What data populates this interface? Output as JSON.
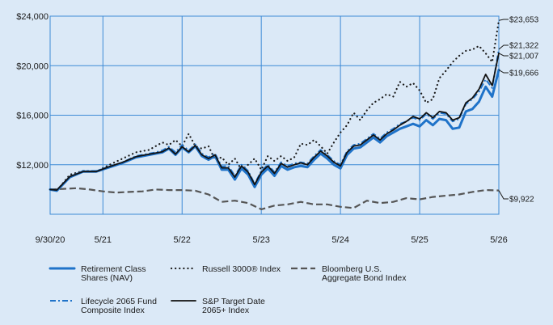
{
  "chart_data": {
    "type": "line",
    "title": "",
    "xlabel": "",
    "ylabel": "",
    "grid": true,
    "legend_placement": "bottom",
    "x_ticks": [
      "9/30/20",
      "5/21",
      "5/22",
      "5/23",
      "5/24",
      "5/25",
      "5/26"
    ],
    "y_ticks": [
      "$12,000",
      "$16,000",
      "$20,000",
      "$24,000"
    ],
    "ylim": [
      8000,
      24000
    ],
    "x_range_months": [
      0,
      68
    ],
    "series": [
      {
        "name": "Retirement Class Shares (NAV)",
        "color": "#1f73c9",
        "style": "solid-thick",
        "end_label": "$19,666",
        "x": [
          0,
          1,
          3,
          5,
          7,
          9,
          11,
          13,
          15,
          16,
          17,
          18,
          19,
          20,
          21,
          22,
          23,
          24,
          25,
          26,
          27,
          28,
          29,
          30,
          31,
          32,
          33,
          34,
          35,
          36,
          37,
          38,
          39,
          40,
          41,
          42,
          43,
          44,
          45,
          46,
          47,
          48,
          49,
          50,
          51,
          52,
          53,
          54,
          55,
          56,
          57,
          58,
          59,
          60,
          61,
          62,
          63,
          64,
          65,
          66,
          67,
          68
        ],
        "values": [
          10000,
          9900,
          11000,
          11450,
          11450,
          11800,
          12150,
          12600,
          12800,
          12900,
          13000,
          13300,
          12800,
          13400,
          13000,
          13500,
          12700,
          12400,
          12700,
          11600,
          11600,
          10800,
          11700,
          11200,
          10200,
          11200,
          11700,
          11100,
          11900,
          11600,
          11800,
          11900,
          11800,
          12400,
          12900,
          12500,
          12000,
          11700,
          12800,
          13300,
          13400,
          13800,
          14200,
          13800,
          14300,
          14600,
          14900,
          15100,
          15300,
          15100,
          15600,
          15200,
          15700,
          15600,
          14900,
          15000,
          16300,
          16500,
          17100,
          18300,
          17500,
          19666
        ]
      },
      {
        "name": "Russell 3000® Index",
        "color": "#1a1a1a",
        "style": "dotted",
        "end_label": "$23,653",
        "x": [
          0,
          1,
          3,
          5,
          7,
          9,
          11,
          13,
          15,
          16,
          17,
          18,
          19,
          20,
          21,
          22,
          23,
          24,
          25,
          26,
          27,
          28,
          29,
          30,
          31,
          32,
          33,
          34,
          35,
          36,
          37,
          38,
          39,
          40,
          41,
          42,
          43,
          44,
          45,
          46,
          47,
          48,
          49,
          50,
          51,
          52,
          53,
          54,
          55,
          56,
          57,
          58,
          59,
          60,
          61,
          62,
          63,
          64,
          65,
          66,
          67,
          68
        ],
        "values": [
          10000,
          9900,
          11200,
          11500,
          11450,
          12000,
          12500,
          13000,
          13200,
          13500,
          13800,
          13600,
          14000,
          13500,
          14500,
          13500,
          13300,
          13500,
          12400,
          12600,
          12000,
          12500,
          11600,
          12000,
          12500,
          11600,
          12700,
          12300,
          12700,
          12300,
          12600,
          13700,
          13600,
          14000,
          13500,
          12900,
          13800,
          14600,
          15200,
          16200,
          15600,
          16400,
          17000,
          17300,
          17700,
          17500,
          18700,
          18300,
          18600,
          18000,
          17000,
          17300,
          19000,
          19600,
          20300,
          20800,
          21200,
          21300,
          21600,
          21000,
          20300,
          23653
        ]
      },
      {
        "name": "Bloomberg U.S. Aggregate Bond Index",
        "color": "#555555",
        "style": "dashed",
        "end_label": "$9,922",
        "x": [
          0,
          2,
          4,
          6,
          8,
          10,
          12,
          14,
          16,
          18,
          20,
          22,
          24,
          26,
          28,
          30,
          32,
          34,
          36,
          38,
          40,
          42,
          44,
          46,
          48,
          50,
          52,
          54,
          56,
          58,
          60,
          62,
          64,
          66,
          68
        ],
        "values": [
          10000,
          10050,
          10100,
          10000,
          9850,
          9750,
          9800,
          9850,
          10000,
          9950,
          9950,
          9900,
          9600,
          9000,
          9100,
          8900,
          8400,
          8700,
          8800,
          9000,
          8800,
          8800,
          8600,
          8500,
          9100,
          8900,
          9000,
          9300,
          9200,
          9400,
          9500,
          9600,
          9800,
          9950,
          9922
        ]
      },
      {
        "name": "Lifecycle 2065 Fund Composite Index",
        "color": "#1f73c9",
        "style": "dashdot",
        "end_label": "$21,322",
        "x": [
          0,
          1,
          3,
          5,
          7,
          9,
          11,
          13,
          15,
          16,
          17,
          18,
          19,
          20,
          21,
          22,
          23,
          24,
          25,
          26,
          27,
          28,
          29,
          30,
          31,
          32,
          33,
          34,
          35,
          36,
          37,
          38,
          39,
          40,
          41,
          42,
          43,
          44,
          45,
          46,
          47,
          48,
          49,
          50,
          51,
          52,
          53,
          54,
          55,
          56,
          57,
          58,
          59,
          60,
          61,
          62,
          63,
          64,
          65,
          66,
          67,
          68
        ],
        "values": [
          10000,
          9920,
          11050,
          11500,
          11500,
          11850,
          12200,
          12700,
          12900,
          13000,
          13150,
          13450,
          13000,
          13600,
          13150,
          13650,
          12900,
          12600,
          12900,
          11850,
          11900,
          11100,
          12000,
          11500,
          10450,
          11500,
          12000,
          11400,
          12200,
          11900,
          12100,
          12200,
          12100,
          12700,
          13200,
          12800,
          12300,
          12000,
          13100,
          13600,
          13700,
          14100,
          14500,
          14100,
          14600,
          14900,
          15300,
          15500,
          15800,
          15600,
          16100,
          15700,
          16200,
          16100,
          15500,
          15700,
          16900,
          17300,
          17900,
          18900,
          18200,
          21322
        ]
      },
      {
        "name": "S&P Target Date 2065+ Index",
        "color": "#111111",
        "style": "solid",
        "end_label": "$21,007",
        "x": [
          0,
          1,
          3,
          5,
          7,
          9,
          11,
          13,
          15,
          16,
          17,
          18,
          19,
          20,
          21,
          22,
          23,
          24,
          25,
          26,
          27,
          28,
          29,
          30,
          31,
          32,
          33,
          34,
          35,
          36,
          37,
          38,
          39,
          40,
          41,
          42,
          43,
          44,
          45,
          46,
          47,
          48,
          49,
          50,
          51,
          52,
          53,
          54,
          55,
          56,
          57,
          58,
          59,
          60,
          61,
          62,
          63,
          64,
          65,
          66,
          67,
          68
        ],
        "values": [
          10000,
          9950,
          11050,
          11450,
          11450,
          11850,
          12200,
          12650,
          12850,
          12950,
          13050,
          13350,
          12850,
          13450,
          13050,
          13550,
          12800,
          12500,
          12800,
          11750,
          11750,
          11000,
          11900,
          11400,
          10400,
          11400,
          11900,
          11300,
          12100,
          11800,
          12000,
          12150,
          12000,
          12600,
          13100,
          12700,
          12200,
          11900,
          13000,
          13500,
          13600,
          14000,
          14400,
          14000,
          14500,
          14800,
          15200,
          15500,
          15900,
          15700,
          16200,
          15800,
          16300,
          16200,
          15600,
          15800,
          17000,
          17400,
          18100,
          19300,
          18400,
          21007
        ]
      }
    ]
  }
}
